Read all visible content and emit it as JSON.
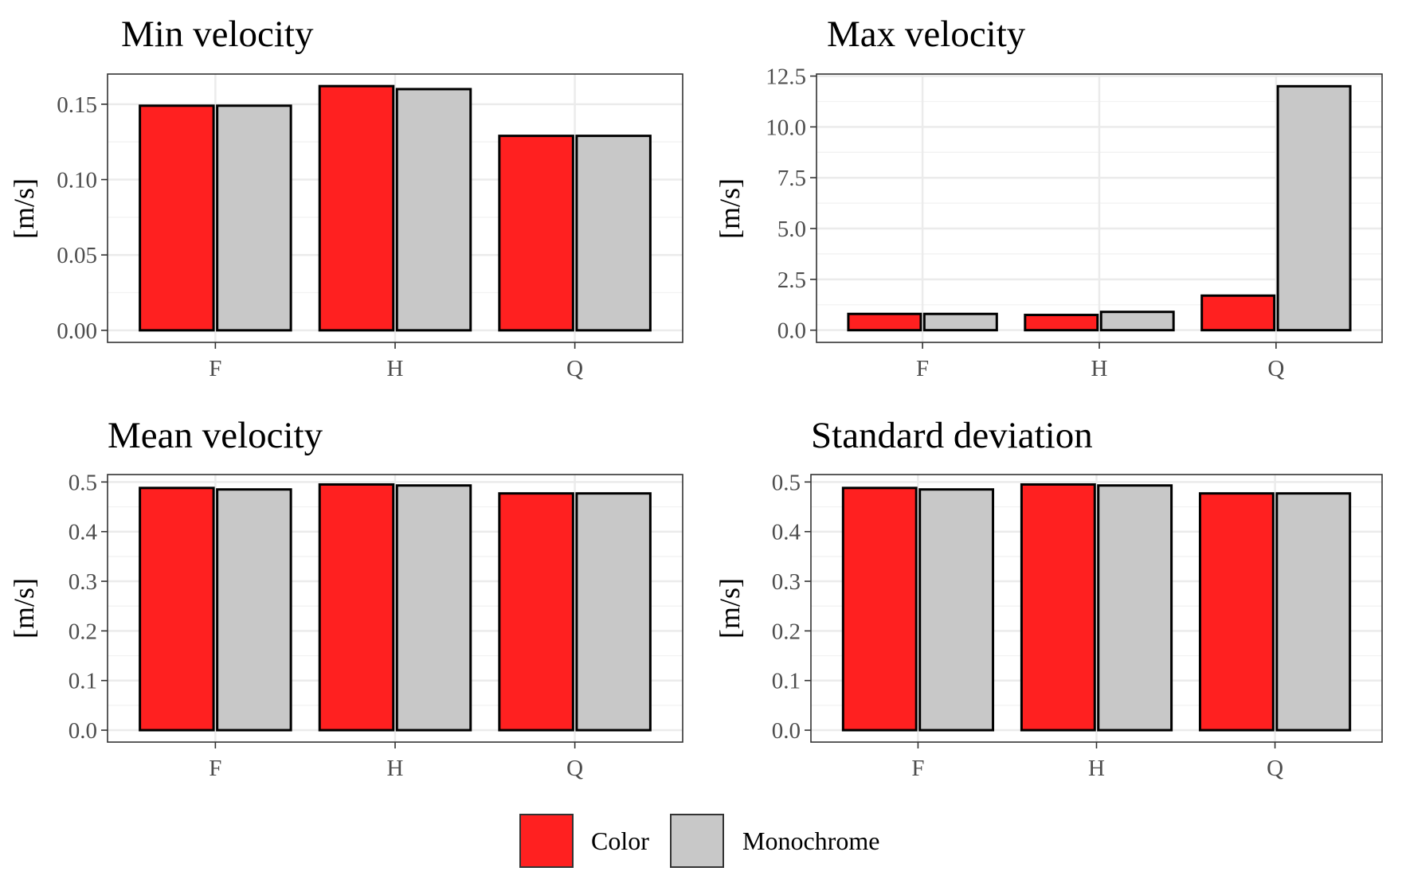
{
  "chart_data": [
    {
      "type": "bar",
      "title": "Min velocity",
      "ylabel": "[m/s]",
      "xlabel": "",
      "categories": [
        "F",
        "H",
        "Q"
      ],
      "series": [
        {
          "name": "Color",
          "values": [
            0.149,
            0.162,
            0.129
          ]
        },
        {
          "name": "Monochrome",
          "values": [
            0.149,
            0.16,
            0.129
          ]
        }
      ],
      "ylim": [
        -0.008,
        0.17
      ],
      "yticks": [
        0.0,
        0.05,
        0.1,
        0.15
      ],
      "ytick_labels": [
        "0.00",
        "0.05",
        "0.10",
        "0.15"
      ]
    },
    {
      "type": "bar",
      "title": "Max velocity",
      "ylabel": "[m/s]",
      "xlabel": "",
      "categories": [
        "F",
        "H",
        "Q"
      ],
      "series": [
        {
          "name": "Color",
          "values": [
            0.8,
            0.75,
            1.7
          ]
        },
        {
          "name": "Monochrome",
          "values": [
            0.8,
            0.9,
            12.0
          ]
        }
      ],
      "ylim": [
        -0.6,
        12.6
      ],
      "yticks": [
        0.0,
        2.5,
        5.0,
        7.5,
        10.0,
        12.5
      ],
      "ytick_labels": [
        "0.0",
        "2.5",
        "5.0",
        "7.5",
        "10.0",
        "12.5"
      ]
    },
    {
      "type": "bar",
      "title": "Mean velocity",
      "ylabel": "[m/s]",
      "xlabel": "",
      "categories": [
        "F",
        "H",
        "Q"
      ],
      "series": [
        {
          "name": "Color",
          "values": [
            0.488,
            0.495,
            0.477
          ]
        },
        {
          "name": "Monochrome",
          "values": [
            0.485,
            0.493,
            0.477
          ]
        }
      ],
      "ylim": [
        -0.024,
        0.515
      ],
      "yticks": [
        0.0,
        0.1,
        0.2,
        0.3,
        0.4,
        0.5
      ],
      "ytick_labels": [
        "0.0",
        "0.1",
        "0.2",
        "0.3",
        "0.4",
        "0.5"
      ]
    },
    {
      "type": "bar",
      "title": "Standard deviation",
      "ylabel": "[m/s]",
      "xlabel": "",
      "categories": [
        "F",
        "H",
        "Q"
      ],
      "series": [
        {
          "name": "Color",
          "values": [
            0.488,
            0.495,
            0.477
          ]
        },
        {
          "name": "Monochrome",
          "values": [
            0.485,
            0.493,
            0.477
          ]
        }
      ],
      "ylim": [
        -0.024,
        0.515
      ],
      "yticks": [
        0.0,
        0.1,
        0.2,
        0.3,
        0.4,
        0.5
      ],
      "ytick_labels": [
        "0.0",
        "0.1",
        "0.2",
        "0.3",
        "0.4",
        "0.5"
      ]
    }
  ],
  "legend": {
    "position": "bottom",
    "items": [
      {
        "label": "Color",
        "color": "#ff2020"
      },
      {
        "label": "Monochrome",
        "color": "#c8c8c8"
      }
    ]
  },
  "colors": {
    "Color": "#ff2020",
    "Monochrome": "#c8c8c8"
  }
}
